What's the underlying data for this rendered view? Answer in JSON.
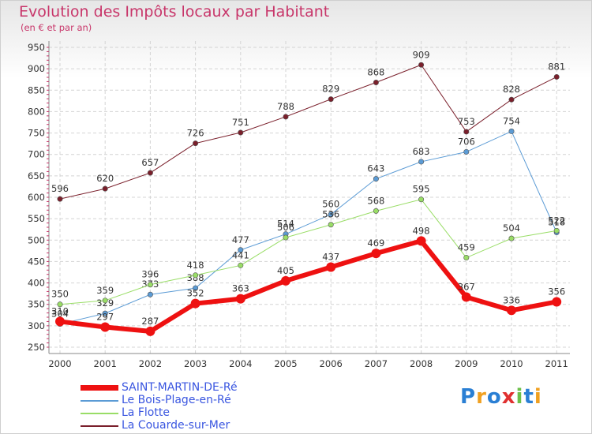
{
  "chart_data": {
    "type": "line",
    "title": "Evolution des Impôts locaux par Habitant",
    "subtitle": "(en € et par an)",
    "xlabel": "",
    "ylabel": "",
    "ylim": [
      250,
      950
    ],
    "yticks": [
      250,
      300,
      350,
      400,
      450,
      500,
      550,
      600,
      650,
      700,
      750,
      800,
      850,
      900,
      950
    ],
    "categories": [
      "2000",
      "2001",
      "2002",
      "2003",
      "2004",
      "2005",
      "2006",
      "2007",
      "2008",
      "2009",
      "2010",
      "2011"
    ],
    "grid": true,
    "legend_position": "bottom-left",
    "series": [
      {
        "name": "La Couarde-sur-Mer",
        "color": "#7a1f2b",
        "width": 1,
        "values": [
          596,
          620,
          657,
          726,
          751,
          788,
          829,
          868,
          909,
          753,
          828,
          881
        ]
      },
      {
        "name": "Le Bois-Plage-en-Ré",
        "color": "#5b9bd5",
        "width": 1,
        "values": [
          304,
          329,
          373,
          388,
          477,
          514,
          560,
          643,
          683,
          706,
          754,
          518
        ]
      },
      {
        "name": "La Flotte",
        "color": "#99dd66",
        "width": 1,
        "values": [
          350,
          359,
          396,
          418,
          441,
          506,
          536,
          568,
          595,
          459,
          504,
          522
        ]
      },
      {
        "name": "SAINT-MARTIN-DE-Ré",
        "color": "#ee1111",
        "width": 6,
        "values": [
          310,
          297,
          287,
          352,
          363,
          405,
          437,
          469,
          498,
          367,
          336,
          356
        ]
      }
    ],
    "legend_order": [
      "SAINT-MARTIN-DE-Ré",
      "Le Bois-Plage-en-Ré",
      "La Flotte",
      "La Couarde-sur-Mer"
    ]
  },
  "branding": {
    "letters": [
      "P",
      "r",
      "o",
      "x",
      "i",
      "t",
      "i"
    ],
    "colors": [
      "#2a7fd4",
      "#f0a020",
      "#2a7fd4",
      "#e03030",
      "#6cc04a",
      "#2a7fd4",
      "#f0a020"
    ]
  }
}
